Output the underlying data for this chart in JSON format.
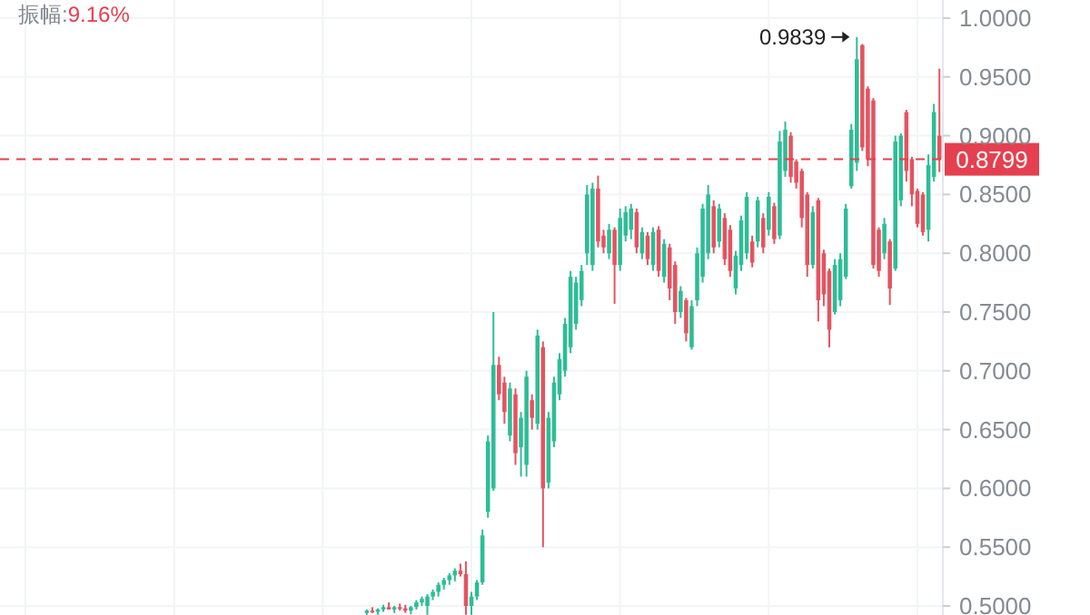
{
  "chart_data": {
    "type": "candlestick",
    "categories": [
      null,
      null,
      null,
      null,
      null,
      null,
      null,
      null,
      null,
      null,
      null,
      null,
      null,
      null,
      null,
      null,
      null,
      null,
      null,
      null,
      null,
      null,
      null,
      null,
      null,
      null,
      null,
      null,
      null,
      null,
      null,
      null,
      null,
      null,
      null,
      null,
      null,
      null,
      null,
      null,
      null,
      null,
      null,
      null,
      null,
      null,
      null,
      null,
      null,
      null,
      null,
      null,
      null,
      null,
      null,
      null,
      null,
      null,
      null,
      null,
      null,
      null,
      null,
      null,
      null,
      null,
      null,
      null,
      null,
      null,
      null,
      null,
      null,
      null,
      null,
      null,
      null,
      null,
      null,
      null,
      null,
      null,
      null,
      null,
      null,
      null,
      null,
      null,
      null,
      null,
      null,
      null,
      null,
      null,
      null,
      null,
      null,
      null,
      null,
      null,
      null,
      null,
      null,
      null,
      null,
      null,
      null,
      null,
      null,
      null,
      null,
      null,
      null,
      null,
      null,
      null,
      null,
      null,
      null,
      null,
      null,
      null,
      null,
      null,
      null,
      null,
      null,
      null,
      null,
      null,
      null,
      null,
      null,
      null,
      null,
      null,
      null,
      null,
      null,
      null,
      null,
      null,
      null,
      null,
      null,
      null,
      null,
      null,
      null,
      null,
      null,
      null,
      null,
      null,
      null,
      null,
      null,
      null,
      null,
      null,
      null,
      null,
      null,
      null,
      null,
      null,
      null,
      null,
      null,
      null,
      null
    ],
    "ohlc": [
      null,
      null,
      null,
      null,
      null,
      null,
      null,
      null,
      null,
      null,
      null,
      null,
      null,
      null,
      null,
      null,
      null,
      null,
      null,
      null,
      null,
      null,
      null,
      null,
      null,
      null,
      null,
      null,
      null,
      null,
      null,
      null,
      null,
      null,
      null,
      null,
      null,
      null,
      null,
      null,
      null,
      null,
      null,
      null,
      null,
      null,
      null,
      null,
      null,
      null,
      null,
      null,
      null,
      null,
      null,
      null,
      null,
      null,
      null,
      null,
      null,
      null,
      null,
      null,
      null,
      null,
      [
        0.494,
        0.497,
        0.4925,
        0.496
      ],
      [
        0.496,
        0.499,
        0.494,
        0.495
      ],
      [
        0.495,
        0.498,
        0.4925,
        0.497
      ],
      [
        0.497,
        0.501,
        0.495,
        0.499
      ],
      [
        0.499,
        0.503,
        0.497,
        0.497
      ],
      [
        0.497,
        0.5,
        0.494,
        0.499
      ],
      [
        0.499,
        0.502,
        0.496,
        0.498
      ],
      [
        0.498,
        0.501,
        0.494,
        0.496
      ],
      [
        0.496,
        0.5,
        0.493,
        0.499
      ],
      [
        0.499,
        0.505,
        0.497,
        0.503
      ],
      [
        0.503,
        0.508,
        0.5,
        0.506
      ],
      [
        0.5,
        0.51,
        0.4925,
        0.508
      ],
      [
        0.508,
        0.514,
        0.505,
        0.512
      ],
      [
        0.512,
        0.52,
        0.508,
        0.518
      ],
      [
        0.518,
        0.524,
        0.514,
        0.522
      ],
      [
        0.522,
        0.528,
        0.518,
        0.526
      ],
      [
        0.526,
        0.532,
        0.521,
        0.53
      ],
      [
        0.53,
        0.536,
        0.525,
        0.527
      ],
      [
        0.527,
        0.538,
        0.4925,
        0.5
      ],
      [
        0.5,
        0.512,
        0.4925,
        0.508
      ],
      [
        0.508,
        0.522,
        0.505,
        0.52
      ],
      [
        0.52,
        0.565,
        0.518,
        0.56
      ],
      [
        0.58,
        0.645,
        0.575,
        0.64
      ],
      [
        0.6,
        0.75,
        0.598,
        0.705
      ],
      [
        0.705,
        0.712,
        0.675,
        0.68
      ],
      [
        0.69,
        0.695,
        0.655,
        0.665
      ],
      [
        0.645,
        0.69,
        0.64,
        0.685
      ],
      [
        0.68,
        0.685,
        0.62,
        0.63
      ],
      [
        0.635,
        0.665,
        0.61,
        0.66
      ],
      [
        0.62,
        0.7,
        0.61,
        0.695
      ],
      [
        0.675,
        0.68,
        0.65,
        0.66
      ],
      [
        0.655,
        0.735,
        0.65,
        0.73
      ],
      [
        0.72,
        0.725,
        0.55,
        0.6
      ],
      [
        0.605,
        0.665,
        0.6,
        0.66
      ],
      [
        0.64,
        0.695,
        0.635,
        0.69
      ],
      [
        0.68,
        0.715,
        0.675,
        0.71
      ],
      [
        0.7,
        0.745,
        0.695,
        0.74
      ],
      [
        0.72,
        0.785,
        0.715,
        0.78
      ],
      [
        0.74,
        0.78,
        0.735,
        0.775
      ],
      [
        0.76,
        0.79,
        0.755,
        0.785
      ],
      [
        0.8,
        0.858,
        0.79,
        0.85
      ],
      [
        0.79,
        0.86,
        0.785,
        0.855
      ],
      [
        0.855,
        0.866,
        0.805,
        0.81
      ],
      [
        0.815,
        0.82,
        0.8,
        0.805
      ],
      [
        0.8,
        0.825,
        0.795,
        0.82
      ],
      [
        0.82,
        0.822,
        0.757,
        0.79
      ],
      [
        0.79,
        0.838,
        0.785,
        0.83
      ],
      [
        0.815,
        0.84,
        0.81,
        0.835
      ],
      [
        0.82,
        0.842,
        0.812,
        0.838
      ],
      [
        0.835,
        0.838,
        0.8,
        0.805
      ],
      [
        0.8,
        0.822,
        0.795,
        0.818
      ],
      [
        0.815,
        0.818,
        0.79,
        0.795
      ],
      [
        0.79,
        0.822,
        0.785,
        0.818
      ],
      [
        0.82,
        0.823,
        0.78,
        0.785
      ],
      [
        0.78,
        0.812,
        0.775,
        0.808
      ],
      [
        0.805,
        0.808,
        0.76,
        0.77
      ],
      [
        0.79,
        0.793,
        0.74,
        0.75
      ],
      [
        0.75,
        0.772,
        0.745,
        0.768
      ],
      [
        0.76,
        0.762,
        0.725,
        0.732
      ],
      [
        0.72,
        0.76,
        0.718,
        0.755
      ],
      [
        0.76,
        0.805,
        0.755,
        0.8
      ],
      [
        0.78,
        0.842,
        0.775,
        0.838
      ],
      [
        0.8,
        0.858,
        0.795,
        0.85
      ],
      [
        0.84,
        0.845,
        0.8,
        0.805
      ],
      [
        0.81,
        0.842,
        0.805,
        0.838
      ],
      [
        0.83,
        0.834,
        0.79,
        0.795
      ],
      [
        0.82,
        0.824,
        0.78,
        0.785
      ],
      [
        0.77,
        0.802,
        0.765,
        0.798
      ],
      [
        0.79,
        0.832,
        0.785,
        0.828
      ],
      [
        0.8,
        0.852,
        0.795,
        0.848
      ],
      [
        0.81,
        0.815,
        0.788,
        0.792
      ],
      [
        0.81,
        0.848,
        0.805,
        0.845
      ],
      [
        0.83,
        0.834,
        0.8,
        0.805
      ],
      [
        0.82,
        0.852,
        0.815,
        0.848
      ],
      [
        0.84,
        0.843,
        0.808,
        0.812
      ],
      [
        0.815,
        0.904,
        0.812,
        0.895
      ],
      [
        0.87,
        0.912,
        0.865,
        0.905
      ],
      [
        0.9,
        0.903,
        0.86,
        0.865
      ],
      [
        0.878,
        0.88,
        0.855,
        0.86
      ],
      [
        0.87,
        0.872,
        0.822,
        0.83
      ],
      [
        0.85,
        0.852,
        0.78,
        0.79
      ],
      [
        0.79,
        0.84,
        0.787,
        0.835
      ],
      [
        0.845,
        0.847,
        0.742,
        0.76
      ],
      [
        0.8,
        0.803,
        0.755,
        0.765
      ],
      [
        0.785,
        0.787,
        0.72,
        0.735
      ],
      [
        0.75,
        0.795,
        0.748,
        0.79
      ],
      [
        0.76,
        0.8,
        0.755,
        0.795
      ],
      [
        0.78,
        0.842,
        0.778,
        0.838
      ],
      [
        0.857,
        0.91,
        0.855,
        0.905
      ],
      [
        0.877,
        0.9839,
        0.87,
        0.965
      ],
      [
        0.977,
        0.978,
        0.887,
        0.89
      ],
      [
        0.94,
        0.942,
        0.874,
        0.88
      ],
      [
        0.93,
        0.932,
        0.787,
        0.79
      ],
      [
        0.82,
        0.822,
        0.78,
        0.785
      ],
      [
        0.8,
        0.83,
        0.795,
        0.825
      ],
      [
        0.81,
        0.812,
        0.756,
        0.77
      ],
      [
        0.787,
        0.9,
        0.785,
        0.895
      ],
      [
        0.845,
        0.902,
        0.84,
        0.9
      ],
      [
        0.92,
        0.922,
        0.861,
        0.87
      ],
      [
        0.88,
        0.882,
        0.84,
        0.85
      ],
      [
        0.853,
        0.855,
        0.822,
        0.825
      ],
      [
        0.85,
        0.852,
        0.815,
        0.818
      ],
      [
        0.82,
        0.884,
        0.81,
        0.875
      ],
      [
        0.865,
        0.927,
        0.861,
        0.92
      ],
      [
        0.9,
        0.957,
        0.869,
        0.8799
      ]
    ],
    "colors": [
      null,
      null,
      null,
      null,
      null,
      null,
      null,
      null,
      null,
      null,
      null,
      null,
      null,
      null,
      null,
      null,
      null,
      null,
      null,
      null,
      null,
      null,
      null,
      null,
      null,
      null,
      null,
      null,
      null,
      null,
      null,
      null,
      null,
      null,
      null,
      null,
      null,
      null,
      null,
      null,
      null,
      null,
      null,
      null,
      null,
      null,
      null,
      null,
      null,
      null,
      null,
      null,
      null,
      null,
      null,
      null,
      null,
      null,
      null,
      null,
      null,
      null,
      null,
      null,
      null,
      null,
      "#2dbd96",
      "#e35461",
      "#2dbd96",
      "#2dbd96",
      "#e35461",
      "#2dbd96",
      "#e35461",
      "#e35461",
      "#2dbd96",
      "#2dbd96",
      "#2dbd96",
      "#2dbd96",
      "#2dbd96",
      "#2dbd96",
      "#2dbd96",
      "#2dbd96",
      "#2dbd96",
      "#e35461",
      "#e35461",
      "#2dbd96",
      "#2dbd96",
      "#2dbd96",
      "#2dbd96",
      "#2dbd96",
      "#e35461",
      "#e35461",
      "#2dbd96",
      "#e35461",
      "#2dbd96",
      "#2dbd96",
      "#e35461",
      "#2dbd96",
      "#e35461",
      "#2dbd96",
      "#2dbd96",
      "#2dbd96",
      "#2dbd96",
      "#2dbd96",
      "#2dbd96",
      "#2dbd96",
      "#2dbd96",
      "#2dbd96",
      "#e35461",
      "#e35461",
      "#2dbd96",
      "#e35461",
      "#2dbd96",
      "#2dbd96",
      "#2dbd96",
      "#e35461",
      "#2dbd96",
      "#e35461",
      "#2dbd96",
      "#e35461",
      "#2dbd96",
      "#e35461",
      "#e35461",
      "#2dbd96",
      "#e35461",
      "#2dbd96",
      "#2dbd96",
      "#2dbd96",
      "#2dbd96",
      "#e35461",
      "#2dbd96",
      "#e35461",
      "#e35461",
      "#2dbd96",
      "#2dbd96",
      "#2dbd96",
      "#e35461",
      "#2dbd96",
      "#e35461",
      "#2dbd96",
      "#e35461",
      "#2dbd96",
      "#2dbd96",
      "#e35461",
      "#e35461",
      "#e35461",
      "#e35461",
      "#2dbd96",
      "#e35461",
      "#e35461",
      "#e35461",
      "#2dbd96",
      "#2dbd96",
      "#2dbd96",
      "#2dbd96",
      "#2dbd96",
      "#e35461",
      "#e35461",
      "#e35461",
      "#e35461",
      "#2dbd96",
      "#e35461",
      "#2dbd96",
      "#2dbd96",
      "#e35461",
      "#e35461",
      "#e35461",
      "#e35461",
      "#2dbd96",
      "#2dbd96",
      "#e35461"
    ],
    "ylim": [
      0.4923,
      1.0154
    ],
    "yticks": [
      {
        "value": 1,
        "label": "1.0000"
      },
      {
        "value": 0.95,
        "label": "0.9500"
      },
      {
        "value": 0.9,
        "label": "0.9000"
      },
      {
        "value": 0.85,
        "label": "0.8500"
      },
      {
        "value": 0.8,
        "label": "0.8000"
      },
      {
        "value": 0.75,
        "label": "0.7500"
      },
      {
        "value": 0.7,
        "label": "0.7000"
      },
      {
        "value": 0.65,
        "label": "0.6500"
      },
      {
        "value": 0.6,
        "label": "0.6000"
      },
      {
        "value": 0.55,
        "label": "0.5500"
      },
      {
        "value": 0.5,
        "label": "0.5000"
      }
    ],
    "grid": true,
    "ref_lines": [
      {
        "axis": "y",
        "value": 0.8799,
        "label": "0.8799",
        "color": "#e5404f",
        "line_style": "dashed"
      }
    ],
    "annotations": [
      "振幅:9.16%",
      "0.9839"
    ]
  }
}
